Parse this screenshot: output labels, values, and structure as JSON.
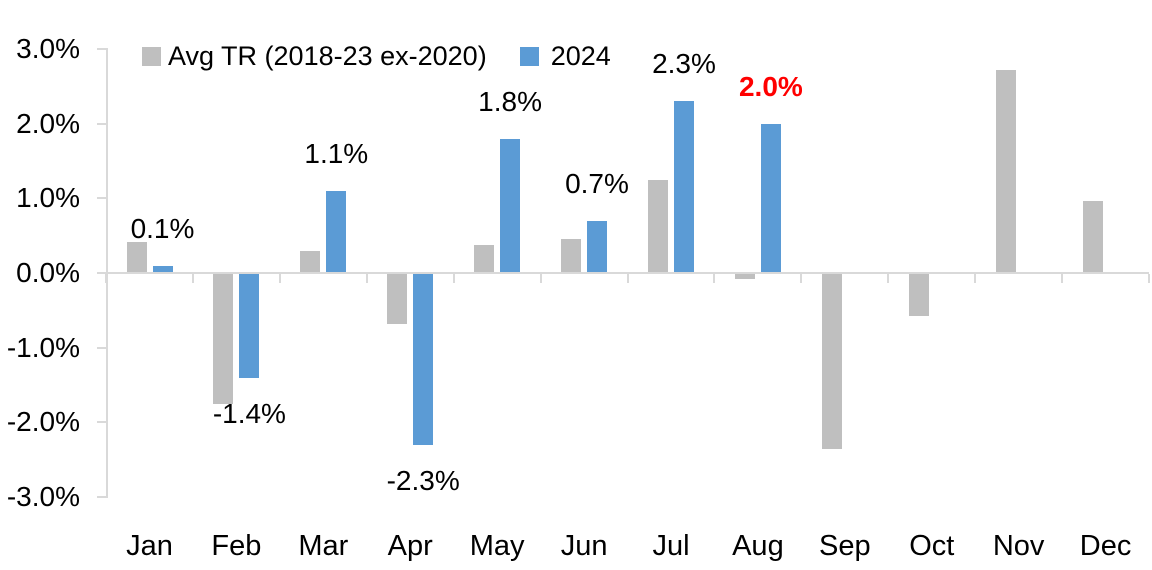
{
  "chart_data": {
    "type": "bar",
    "title": "",
    "categories": [
      "Jan",
      "Feb",
      "Mar",
      "Apr",
      "May",
      "Jun",
      "Jul",
      "Aug",
      "Sep",
      "Oct",
      "Nov",
      "Dec"
    ],
    "y_axis": {
      "tick_labels": [
        "3.0%",
        "2.0%",
        "1.0%",
        "0.0%",
        "-1.0%",
        "-2.0%",
        "-3.0%"
      ],
      "max": 3.0,
      "min": -3.0,
      "step": 1.0,
      "unit": "%"
    },
    "series": [
      {
        "name": "Avg TR (2018-23 ex-2020)",
        "key": "avg-tr",
        "color": "#BFBFBF",
        "values": [
          0.42,
          -1.75,
          0.3,
          -0.68,
          0.37,
          0.45,
          1.25,
          -0.08,
          -2.35,
          -0.58,
          2.72,
          0.96
        ]
      },
      {
        "name": "2024",
        "key": "2024",
        "color": "#5B9BD5",
        "values": [
          0.1,
          -1.4,
          1.1,
          -2.3,
          1.8,
          0.7,
          2.3,
          2.0,
          null,
          null,
          null,
          null
        ],
        "data_labels": [
          {
            "text": "0.1%",
            "color": "#000000",
            "bold": false
          },
          {
            "text": "-1.4%",
            "color": "#000000",
            "bold": false
          },
          {
            "text": "1.1%",
            "color": "#000000",
            "bold": false
          },
          {
            "text": "-2.3%",
            "color": "#000000",
            "bold": false
          },
          {
            "text": "1.8%",
            "color": "#000000",
            "bold": false
          },
          {
            "text": "0.7%",
            "color": "#000000",
            "bold": false
          },
          {
            "text": "2.3%",
            "color": "#000000",
            "bold": false
          },
          {
            "text": "2.0%",
            "color": "#FF0000",
            "bold": true
          },
          null,
          null,
          null,
          null
        ]
      }
    ],
    "legend_position": "top",
    "grid": false,
    "axis_color": "#D9D9D9",
    "text_color": "#000000",
    "background": "#FFFFFF"
  }
}
